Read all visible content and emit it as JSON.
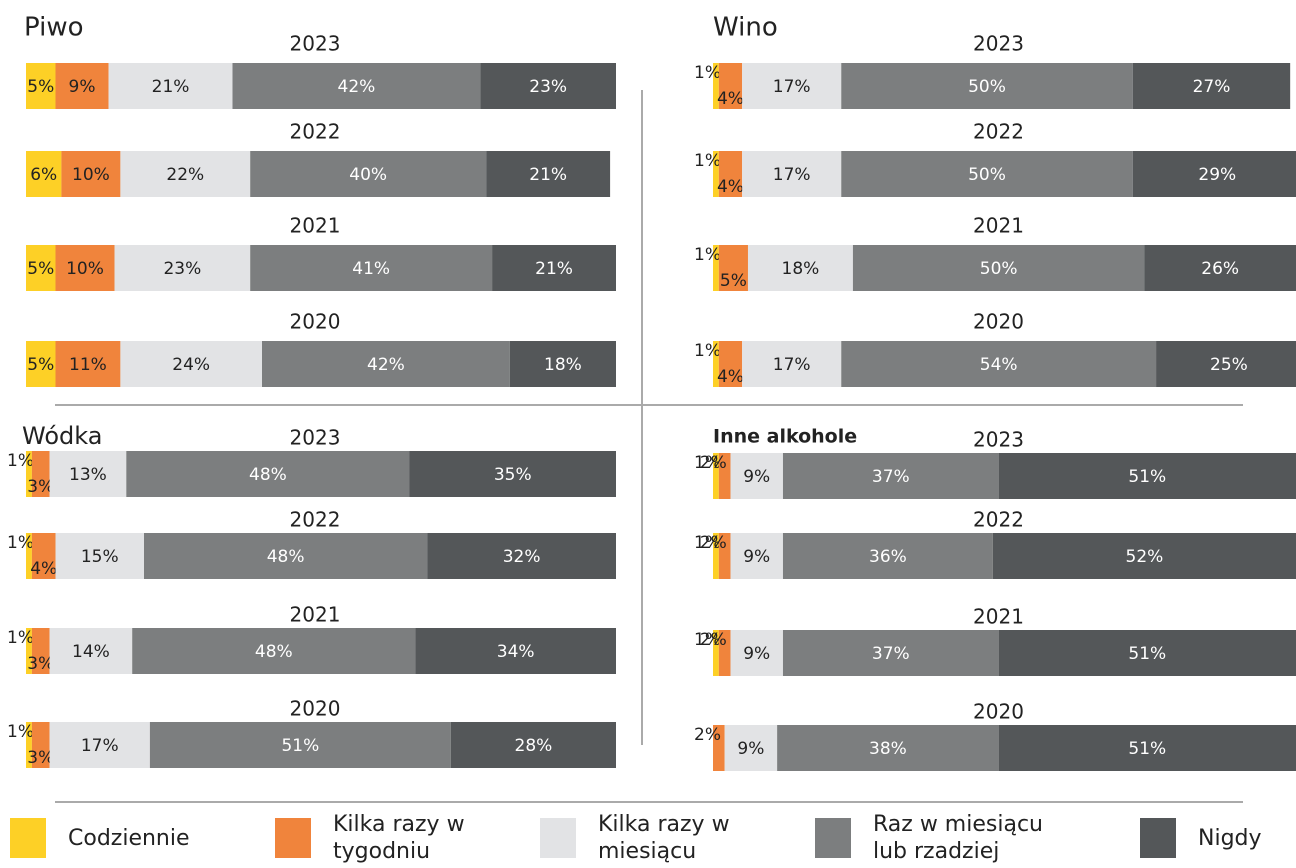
{
  "chart_data": [
    {
      "type": "stacked_bar_h",
      "title": "Piwo",
      "categories": [
        "2023",
        "2022",
        "2021",
        "2020"
      ],
      "xlim": [
        0,
        100
      ],
      "series": [
        {
          "name": "Codziennie",
          "color": "#fdd026",
          "values": [
            5,
            6,
            5,
            5
          ],
          "value_labels": [
            "5%",
            "6%",
            "5%",
            "5%"
          ]
        },
        {
          "name": "Kilka razy w tygodniu",
          "color": "#f0843c",
          "values": [
            9,
            10,
            10,
            11
          ],
          "value_labels": [
            "9%",
            "10%",
            "10%",
            "11%"
          ]
        },
        {
          "name": "Kilka razy w miesiącu",
          "color": "#e2e3e5",
          "values": [
            21,
            22,
            23,
            24
          ],
          "value_labels": [
            "21%",
            "22%",
            "23%",
            "24%"
          ]
        },
        {
          "name": "Raz w miesiącu lub rzadziej",
          "color": "#7c7e7f",
          "values": [
            42,
            40,
            41,
            42
          ],
          "value_labels": [
            "42%",
            "40%",
            "41%",
            "42%"
          ]
        },
        {
          "name": "Nigdy",
          "color": "#545759",
          "values": [
            23,
            21,
            21,
            18
          ],
          "value_labels": [
            "23%",
            "21%",
            "21%",
            "18%"
          ]
        }
      ]
    },
    {
      "type": "stacked_bar_h",
      "title": "Wino",
      "categories": [
        "2023",
        "2022",
        "2021",
        "2020"
      ],
      "xlim": [
        0,
        100
      ],
      "series": [
        {
          "name": "Codziennie",
          "color": "#fdd026",
          "values": [
            1,
            1,
            1,
            1
          ],
          "value_labels": [
            "1%",
            "1%",
            "1%",
            "1%"
          ]
        },
        {
          "name": "Kilka razy w tygodniu",
          "color": "#f0843c",
          "values": [
            4,
            4,
            5,
            4
          ],
          "value_labels": [
            "4%",
            "4%",
            "5%",
            "4%"
          ]
        },
        {
          "name": "Kilka razy w miesiącu",
          "color": "#e2e3e5",
          "values": [
            17,
            17,
            18,
            17
          ],
          "value_labels": [
            "17%",
            "17%",
            "18%",
            "17%"
          ]
        },
        {
          "name": "Raz w miesiącu lub rzadziej",
          "color": "#7c7e7f",
          "values": [
            50,
            50,
            50,
            54
          ],
          "value_labels": [
            "50%",
            "50%",
            "50%",
            "54%"
          ]
        },
        {
          "name": "Nigdy",
          "color": "#545759",
          "values": [
            27,
            29,
            26,
            25
          ],
          "value_labels": [
            "27%",
            "29%",
            "26%",
            "25%"
          ]
        }
      ]
    },
    {
      "type": "stacked_bar_h",
      "title": "Wódka",
      "categories": [
        "2023",
        "2022",
        "2021",
        "2020"
      ],
      "xlim": [
        0,
        100
      ],
      "series": [
        {
          "name": "Codziennie",
          "color": "#fdd026",
          "values": [
            1,
            1,
            1,
            1
          ],
          "value_labels": [
            "1%",
            "1%",
            "1%",
            "1%"
          ]
        },
        {
          "name": "Kilka razy w tygodniu",
          "color": "#f0843c",
          "values": [
            3,
            4,
            3,
            3
          ],
          "value_labels": [
            "3%",
            "4%",
            "3%",
            "3%"
          ]
        },
        {
          "name": "Kilka razy w miesiącu",
          "color": "#e2e3e5",
          "values": [
            13,
            15,
            14,
            17
          ],
          "value_labels": [
            "13%",
            "15%",
            "14%",
            "17%"
          ]
        },
        {
          "name": "Raz w miesiącu lub rzadziej",
          "color": "#7c7e7f",
          "values": [
            48,
            48,
            48,
            51
          ],
          "value_labels": [
            "48%",
            "48%",
            "48%",
            "51%"
          ]
        },
        {
          "name": "Nigdy",
          "color": "#545759",
          "values": [
            35,
            32,
            34,
            28
          ],
          "value_labels": [
            "35%",
            "32%",
            "34%",
            "28%"
          ]
        }
      ]
    },
    {
      "type": "stacked_bar_h",
      "title": "Inne alkohole",
      "categories": [
        "2023",
        "2022",
        "2021",
        "2020"
      ],
      "xlim": [
        0,
        100
      ],
      "series": [
        {
          "name": "Codziennie",
          "color": "#fdd026",
          "values": [
            1,
            1,
            1,
            null
          ],
          "value_labels": [
            "1%",
            "1%",
            "1%",
            null
          ]
        },
        {
          "name": "Kilka razy w tygodniu",
          "color": "#f0843c",
          "values": [
            2,
            2,
            2,
            2
          ],
          "value_labels": [
            "2%",
            "2%",
            "2%",
            "2%"
          ]
        },
        {
          "name": "Kilka razy w miesiącu",
          "color": "#e2e3e5",
          "values": [
            9,
            9,
            9,
            9
          ],
          "value_labels": [
            "9%",
            "9%",
            "9%",
            "9%"
          ]
        },
        {
          "name": "Raz w miesiącu lub rzadziej",
          "color": "#7c7e7f",
          "values": [
            37,
            36,
            37,
            38
          ],
          "value_labels": [
            "37%",
            "36%",
            "37%",
            "38%"
          ]
        },
        {
          "name": "Nigdy",
          "color": "#545759",
          "values": [
            51,
            52,
            51,
            51
          ],
          "value_labels": [
            "51%",
            "52%",
            "51%",
            "51%"
          ]
        }
      ]
    }
  ]
}
